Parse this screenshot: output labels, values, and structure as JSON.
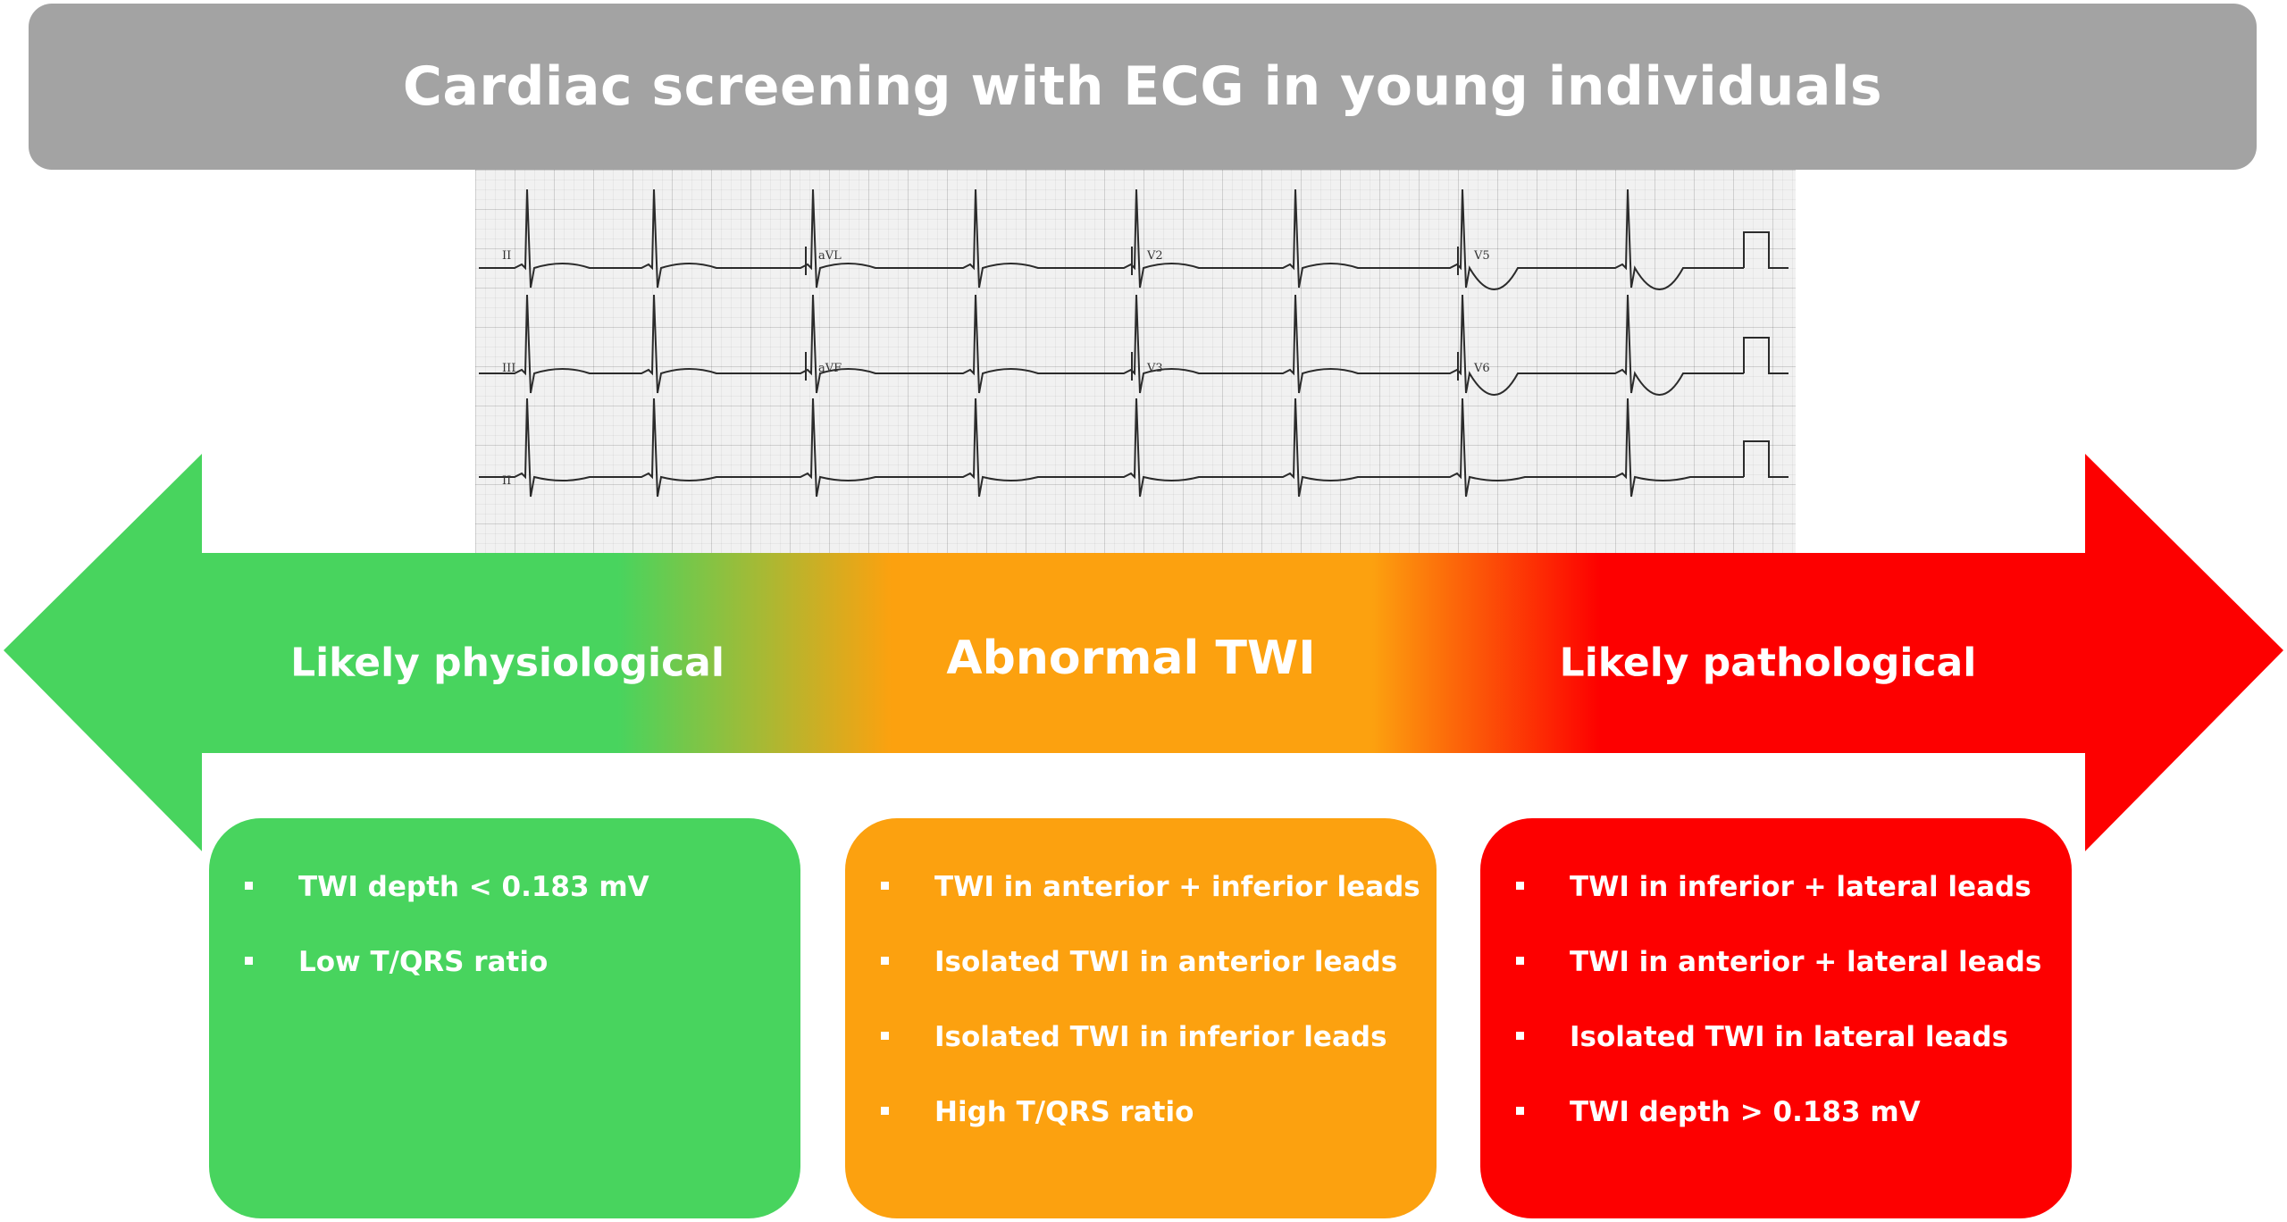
{
  "title": "Cardiac screening with ECG in young individuals",
  "colors": {
    "banner": "#a3a3a3",
    "physiological": "#48d45e",
    "abnormal": "#fca10f",
    "pathological": "#fd0000",
    "text": "#ffffff"
  },
  "ecg_leads": [
    "II",
    "aVL",
    "V2",
    "V5",
    "III",
    "aVF",
    "V3",
    "V6",
    "II"
  ],
  "arrow": {
    "left_label": "Likely physiological",
    "center_label": "Abnormal TWI",
    "right_label": "Likely pathological"
  },
  "boxes": {
    "physiological": {
      "items": [
        "TWI depth < 0.183 mV",
        "Low T/QRS ratio"
      ]
    },
    "abnormal": {
      "items": [
        "TWI in anterior + inferior leads",
        "Isolated TWI in anterior leads",
        "Isolated TWI in inferior leads",
        "High T/QRS ratio"
      ]
    },
    "pathological": {
      "items": [
        "TWI in inferior + lateral leads",
        "TWI in anterior + lateral leads",
        "Isolated TWI in lateral leads",
        "TWI depth > 0.183 mV"
      ]
    }
  }
}
